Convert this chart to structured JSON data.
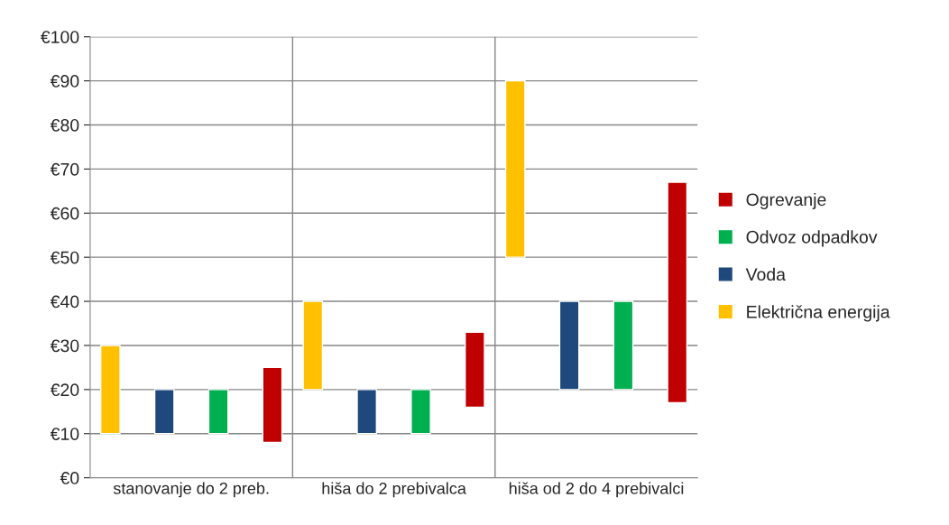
{
  "chart_data": {
    "type": "bar",
    "categories": [
      "stanovanje do 2 preb.",
      "hiša do 2 prebivalca",
      "hiša od 2 do 4 prebivalci"
    ],
    "series": [
      {
        "name": "Električna energija",
        "color": "#ffc000",
        "base": [
          10,
          20,
          50
        ],
        "values": [
          20,
          20,
          40
        ]
      },
      {
        "name": "Voda",
        "color": "#1f497d",
        "base": [
          10,
          10,
          20
        ],
        "values": [
          10,
          10,
          20
        ]
      },
      {
        "name": "Odvoz odpadkov",
        "color": "#00b050",
        "base": [
          10,
          10,
          20
        ],
        "values": [
          10,
          10,
          20
        ]
      },
      {
        "name": "Ogrevanje",
        "color": "#c00000",
        "base": [
          8,
          16,
          17
        ],
        "values": [
          17,
          17,
          50
        ]
      }
    ],
    "ylim": [
      0,
      100
    ],
    "yticks": [
      {
        "value": 0,
        "label": "€0"
      },
      {
        "value": 10,
        "label": "€10"
      },
      {
        "value": 20,
        "label": "€20"
      },
      {
        "value": 30,
        "label": "€30"
      },
      {
        "value": 40,
        "label": "€40"
      },
      {
        "value": 50,
        "label": "€50"
      },
      {
        "value": 60,
        "label": "€60"
      },
      {
        "value": 70,
        "label": "€70"
      },
      {
        "value": 80,
        "label": "€80"
      },
      {
        "value": 90,
        "label": "€90"
      },
      {
        "value": 100,
        "label": "€100"
      }
    ],
    "grid": true,
    "legend": "right"
  }
}
